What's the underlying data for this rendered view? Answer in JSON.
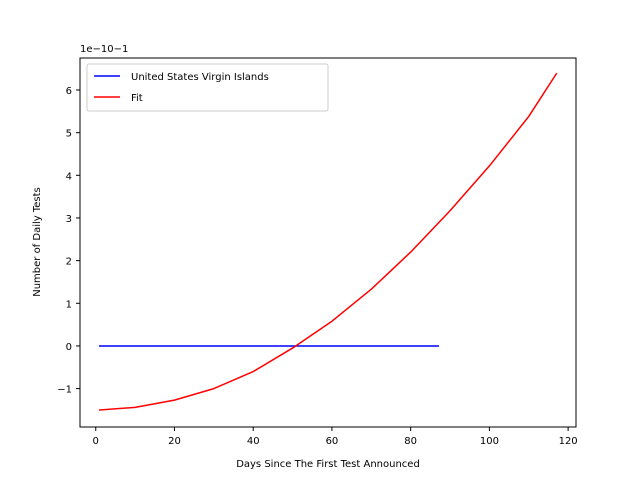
{
  "chart_data": {
    "type": "line",
    "title": "",
    "xlabel": "Days Since The First Test Announced",
    "ylabel": "Number of Daily Tests",
    "y_offset_label": "1e−10−1",
    "xlim": [
      -4,
      122
    ],
    "ylim": [
      -1.9,
      6.75
    ],
    "xticks": [
      0,
      20,
      40,
      60,
      80,
      100,
      120
    ],
    "xtick_labels": [
      "0",
      "20",
      "40",
      "60",
      "80",
      "100",
      "120"
    ],
    "yticks": [
      -1,
      0,
      1,
      2,
      3,
      4,
      5,
      6
    ],
    "ytick_labels": [
      "−1",
      "0",
      "1",
      "2",
      "3",
      "4",
      "5",
      "6"
    ],
    "grid": false,
    "legend_position": "upper-left",
    "series": [
      {
        "name": "United States Virgin Islands",
        "color": "#0000ff",
        "x": [
          1,
          87
        ],
        "y": [
          0,
          0
        ]
      },
      {
        "name": "Fit",
        "color": "#ff0000",
        "x": [
          1,
          10,
          20,
          30,
          40,
          50,
          60,
          70,
          80,
          90,
          100,
          110,
          117
        ],
        "y": [
          -1.5,
          -1.44,
          -1.27,
          -1.0,
          -0.6,
          -0.05,
          0.58,
          1.33,
          2.2,
          3.17,
          4.22,
          5.38,
          6.38
        ]
      }
    ]
  }
}
